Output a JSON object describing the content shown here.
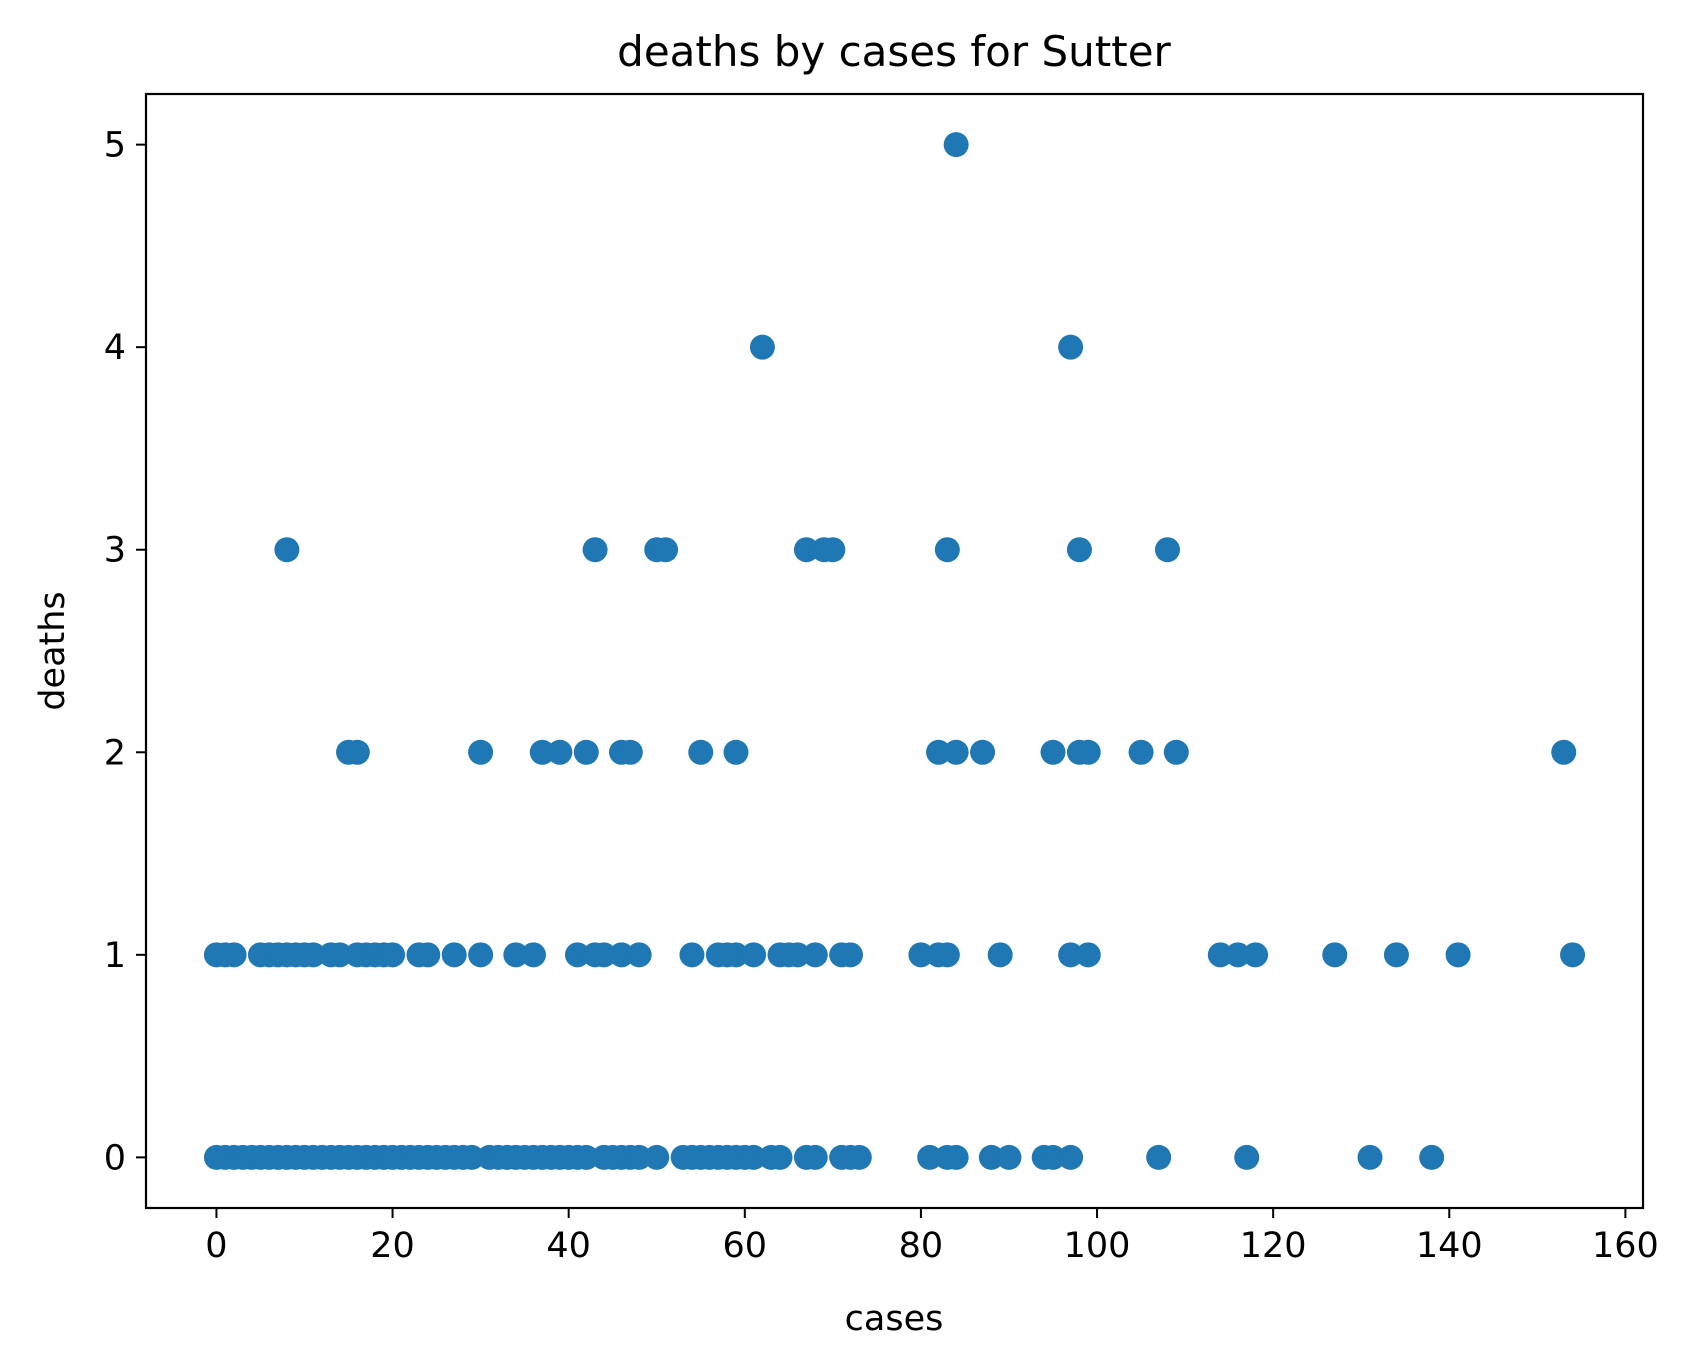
{
  "chart_data": {
    "type": "scatter",
    "title": "deaths by cases for Sutter",
    "xlabel": "cases",
    "ylabel": "deaths",
    "xlim": [
      -8,
      162
    ],
    "ylim": [
      -0.25,
      5.25
    ],
    "x_ticks": [
      0,
      20,
      40,
      60,
      80,
      100,
      120,
      140,
      160
    ],
    "y_ticks": [
      0,
      1,
      2,
      3,
      4,
      5
    ],
    "x_tick_labels": [
      "0",
      "20",
      "40",
      "60",
      "80",
      "100",
      "120",
      "140",
      "160"
    ],
    "y_tick_labels": [
      "0",
      "1",
      "2",
      "3",
      "4",
      "5"
    ],
    "grid": false,
    "marker_color": "#1f77b4",
    "points": [
      [
        0,
        0
      ],
      [
        1,
        0
      ],
      [
        2,
        0
      ],
      [
        3,
        0
      ],
      [
        4,
        0
      ],
      [
        5,
        0
      ],
      [
        6,
        0
      ],
      [
        7,
        0
      ],
      [
        8,
        0
      ],
      [
        9,
        0
      ],
      [
        10,
        0
      ],
      [
        11,
        0
      ],
      [
        12,
        0
      ],
      [
        13,
        0
      ],
      [
        14,
        0
      ],
      [
        15,
        0
      ],
      [
        16,
        0
      ],
      [
        17,
        0
      ],
      [
        18,
        0
      ],
      [
        19,
        0
      ],
      [
        20,
        0
      ],
      [
        21,
        0
      ],
      [
        22,
        0
      ],
      [
        23,
        0
      ],
      [
        24,
        0
      ],
      [
        25,
        0
      ],
      [
        26,
        0
      ],
      [
        27,
        0
      ],
      [
        28,
        0
      ],
      [
        29,
        0
      ],
      [
        31,
        0
      ],
      [
        32,
        0
      ],
      [
        33,
        0
      ],
      [
        34,
        0
      ],
      [
        35,
        0
      ],
      [
        36,
        0
      ],
      [
        37,
        0
      ],
      [
        38,
        0
      ],
      [
        39,
        0
      ],
      [
        40,
        0
      ],
      [
        41,
        0
      ],
      [
        42,
        0
      ],
      [
        44,
        0
      ],
      [
        45,
        0
      ],
      [
        46,
        0
      ],
      [
        47,
        0
      ],
      [
        48,
        0
      ],
      [
        50,
        0
      ],
      [
        53,
        0
      ],
      [
        54,
        0
      ],
      [
        55,
        0
      ],
      [
        56,
        0
      ],
      [
        57,
        0
      ],
      [
        58,
        0
      ],
      [
        59,
        0
      ],
      [
        60,
        0
      ],
      [
        61,
        0
      ],
      [
        63,
        0
      ],
      [
        64,
        0
      ],
      [
        67,
        0
      ],
      [
        68,
        0
      ],
      [
        71,
        0
      ],
      [
        72,
        0
      ],
      [
        73,
        0
      ],
      [
        81,
        0
      ],
      [
        83,
        0
      ],
      [
        84,
        0
      ],
      [
        88,
        0
      ],
      [
        90,
        0
      ],
      [
        94,
        0
      ],
      [
        95,
        0
      ],
      [
        97,
        0
      ],
      [
        107,
        0
      ],
      [
        117,
        0
      ],
      [
        131,
        0
      ],
      [
        138,
        0
      ],
      [
        0,
        1
      ],
      [
        1,
        1
      ],
      [
        2,
        1
      ],
      [
        5,
        1
      ],
      [
        6,
        1
      ],
      [
        7,
        1
      ],
      [
        8,
        1
      ],
      [
        9,
        1
      ],
      [
        10,
        1
      ],
      [
        11,
        1
      ],
      [
        13,
        1
      ],
      [
        14,
        1
      ],
      [
        16,
        1
      ],
      [
        17,
        1
      ],
      [
        18,
        1
      ],
      [
        19,
        1
      ],
      [
        20,
        1
      ],
      [
        23,
        1
      ],
      [
        24,
        1
      ],
      [
        27,
        1
      ],
      [
        30,
        1
      ],
      [
        34,
        1
      ],
      [
        36,
        1
      ],
      [
        41,
        1
      ],
      [
        43,
        1
      ],
      [
        44,
        1
      ],
      [
        46,
        1
      ],
      [
        48,
        1
      ],
      [
        54,
        1
      ],
      [
        57,
        1
      ],
      [
        58,
        1
      ],
      [
        59,
        1
      ],
      [
        61,
        1
      ],
      [
        64,
        1
      ],
      [
        65,
        1
      ],
      [
        66,
        1
      ],
      [
        68,
        1
      ],
      [
        71,
        1
      ],
      [
        72,
        1
      ],
      [
        80,
        1
      ],
      [
        82,
        1
      ],
      [
        83,
        1
      ],
      [
        89,
        1
      ],
      [
        97,
        1
      ],
      [
        99,
        1
      ],
      [
        114,
        1
      ],
      [
        116,
        1
      ],
      [
        118,
        1
      ],
      [
        127,
        1
      ],
      [
        134,
        1
      ],
      [
        141,
        1
      ],
      [
        154,
        1
      ],
      [
        15,
        2
      ],
      [
        16,
        2
      ],
      [
        30,
        2
      ],
      [
        37,
        2
      ],
      [
        39,
        2
      ],
      [
        42,
        2
      ],
      [
        46,
        2
      ],
      [
        47,
        2
      ],
      [
        55,
        2
      ],
      [
        59,
        2
      ],
      [
        82,
        2
      ],
      [
        84,
        2
      ],
      [
        87,
        2
      ],
      [
        95,
        2
      ],
      [
        98,
        2
      ],
      [
        99,
        2
      ],
      [
        105,
        2
      ],
      [
        109,
        2
      ],
      [
        153,
        2
      ],
      [
        8,
        3
      ],
      [
        43,
        3
      ],
      [
        50,
        3
      ],
      [
        51,
        3
      ],
      [
        67,
        3
      ],
      [
        69,
        3
      ],
      [
        70,
        3
      ],
      [
        83,
        3
      ],
      [
        98,
        3
      ],
      [
        108,
        3
      ],
      [
        62,
        4
      ],
      [
        97,
        4
      ],
      [
        84,
        5
      ]
    ]
  }
}
